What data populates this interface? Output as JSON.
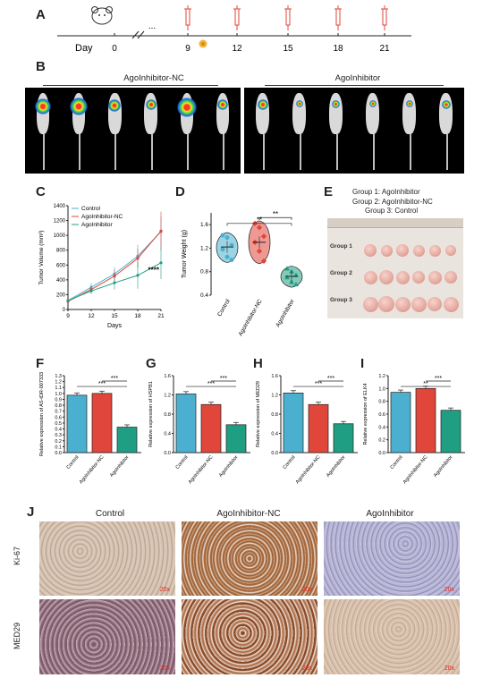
{
  "panels": [
    "A",
    "B",
    "C",
    "D",
    "E",
    "F",
    "G",
    "H",
    "I",
    "J"
  ],
  "timeline": {
    "day_label": "Day",
    "days": [
      "0",
      "...",
      "9",
      "12",
      "15",
      "18",
      "21"
    ]
  },
  "imaging": {
    "left_label": "AgoInhibitor-NC",
    "right_label": "AgoInhibitor"
  },
  "tumor_photo": {
    "legend": [
      "Group 1: AgoInhibitor",
      "Group 2: AgoInhibitor-NC",
      "Group 3: Control"
    ],
    "rows": [
      "Group 1",
      "Group 2",
      "Group 3"
    ]
  },
  "colors": {
    "control": "#4bb0cf",
    "nc": "#e0463a",
    "inhibitor": "#1f9e83"
  },
  "chart_data": [
    {
      "type": "line",
      "panel": "C",
      "xlabel": "Days",
      "ylabel": "Tumor Volume (mm³)",
      "x": [
        9,
        12,
        15,
        18,
        21
      ],
      "ylim": [
        0,
        1400
      ],
      "yticks": [
        0,
        200,
        400,
        600,
        800,
        1000,
        1200,
        1400
      ],
      "series": [
        {
          "name": "Control",
          "values": [
            120,
            300,
            480,
            720,
            1050
          ]
        },
        {
          "name": "AgoInhibitor-NC",
          "values": [
            110,
            270,
            450,
            690,
            1060
          ]
        },
        {
          "name": "AgoInhibitor",
          "values": [
            120,
            250,
            360,
            460,
            630
          ]
        }
      ],
      "annotation": "****",
      "legend": "top-left"
    },
    {
      "type": "scatter",
      "panel": "D",
      "ylabel": "Tumor Weight (g)",
      "categories": [
        "Control",
        "AgoInhibitor-NC",
        "AgoInhibitor"
      ],
      "ylim": [
        0.4,
        1.8
      ],
      "yticks": [
        0.4,
        0.8,
        1.2,
        1.6
      ],
      "means": [
        1.22,
        1.3,
        0.72
      ],
      "points": [
        [
          1.42,
          1.38,
          1.25,
          1.18,
          1.05,
          1.0
        ],
        [
          1.62,
          1.55,
          1.4,
          1.3,
          1.15,
          0.98
        ],
        [
          0.85,
          0.8,
          0.74,
          0.7,
          0.62,
          0.58
        ]
      ],
      "annotations": [
        "**",
        "**"
      ]
    },
    {
      "type": "bar",
      "panel": "F",
      "ylabel": "Relative expression of AS-tDR-007333",
      "categories": [
        "Control",
        "AgoInhibitor-NC",
        "AgoInhibitor"
      ],
      "values": [
        0.97,
        1.0,
        0.43
      ],
      "ylim": [
        0,
        1.3
      ],
      "yticks": [
        0.0,
        0.1,
        0.2,
        0.3,
        0.4,
        0.5,
        0.6,
        0.7,
        0.8,
        0.9,
        1.0,
        1.1,
        1.2,
        1.3
      ],
      "annotations": [
        "***",
        "***"
      ]
    },
    {
      "type": "bar",
      "panel": "G",
      "ylabel": "Relative expression of HSPB1",
      "categories": [
        "Control",
        "AgoInhibitor-NC",
        "AgoInhibitor"
      ],
      "values": [
        1.22,
        1.0,
        0.58
      ],
      "ylim": [
        0,
        1.6
      ],
      "yticks": [
        0.0,
        0.4,
        0.8,
        1.2,
        1.6
      ],
      "annotations": [
        "***",
        "***"
      ]
    },
    {
      "type": "bar",
      "panel": "H",
      "ylabel": "Relative expression of MED29",
      "categories": [
        "Control",
        "AgoInhibitor-NC",
        "AgoInhibitor"
      ],
      "values": [
        1.24,
        1.0,
        0.6
      ],
      "ylim": [
        0,
        1.6
      ],
      "yticks": [
        0.0,
        0.4,
        0.8,
        1.2,
        1.6
      ],
      "annotations": [
        "***",
        "***"
      ]
    },
    {
      "type": "bar",
      "panel": "I",
      "ylabel": "Relative expression of ELK4",
      "categories": [
        "Control",
        "AgoInhibitor-NC",
        "AgoInhibitor"
      ],
      "values": [
        0.94,
        1.0,
        0.66
      ],
      "ylim": [
        0,
        1.2
      ],
      "yticks": [
        0.0,
        0.2,
        0.4,
        0.6,
        0.8,
        1.0,
        1.2
      ],
      "annotations": [
        "**",
        "***"
      ]
    }
  ],
  "ihc": {
    "columns": [
      "Control",
      "AgoInhibitor-NC",
      "AgoInhibitor"
    ],
    "rows": [
      "Ki-67",
      "MED29"
    ],
    "magnification": "20x"
  }
}
